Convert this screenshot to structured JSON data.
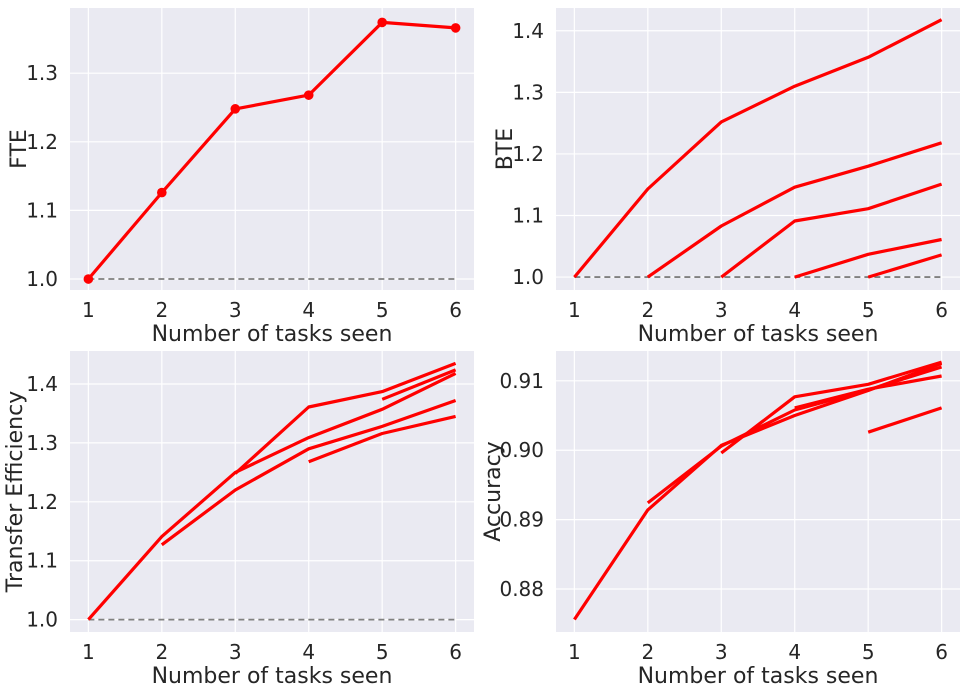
{
  "chart_data": [
    {
      "id": "fte",
      "type": "line",
      "title": "",
      "xlabel": "Number of tasks seen",
      "ylabel": "FTE",
      "xlim": [
        0.75,
        6.25
      ],
      "ylim": [
        0.984,
        1.395
      ],
      "xticks": [
        1,
        2,
        3,
        4,
        5,
        6
      ],
      "yticks": [
        1.0,
        1.1,
        1.2,
        1.3
      ],
      "ytick_labels": [
        "1.0",
        "1.1",
        "1.2",
        "1.3"
      ],
      "grid": true,
      "baseline": 1.0,
      "series": [
        {
          "x": [
            1,
            2,
            3,
            4,
            5,
            6
          ],
          "y": [
            1.0,
            1.126,
            1.248,
            1.268,
            1.374,
            1.366
          ],
          "markers": true
        }
      ]
    },
    {
      "id": "bte",
      "type": "line",
      "title": "",
      "xlabel": "Number of tasks seen",
      "ylabel": "BTE",
      "xlim": [
        0.75,
        6.25
      ],
      "ylim": [
        0.979,
        1.437
      ],
      "xticks": [
        1,
        2,
        3,
        4,
        5,
        6
      ],
      "yticks": [
        1.0,
        1.1,
        1.2,
        1.3,
        1.4
      ],
      "ytick_labels": [
        "1.0",
        "1.1",
        "1.2",
        "1.3",
        "1.4"
      ],
      "grid": true,
      "baseline": 1.0,
      "series": [
        {
          "x": [
            1,
            2,
            3,
            4,
            5,
            6
          ],
          "y": [
            1.0,
            1.143,
            1.252,
            1.31,
            1.357,
            1.418
          ]
        },
        {
          "x": [
            2,
            3,
            4,
            5,
            6
          ],
          "y": [
            1.0,
            1.083,
            1.146,
            1.18,
            1.218
          ]
        },
        {
          "x": [
            3,
            4,
            5,
            6
          ],
          "y": [
            1.0,
            1.091,
            1.111,
            1.151
          ]
        },
        {
          "x": [
            4,
            5,
            6
          ],
          "y": [
            1.0,
            1.037,
            1.061
          ]
        },
        {
          "x": [
            5,
            6
          ],
          "y": [
            1.0,
            1.036
          ]
        }
      ]
    },
    {
      "id": "transfer",
      "type": "line",
      "title": "",
      "xlabel": "Number of tasks seen",
      "ylabel": "Transfer Efficiency",
      "xlim": [
        0.75,
        6.25
      ],
      "ylim": [
        0.979,
        1.456
      ],
      "xticks": [
        1,
        2,
        3,
        4,
        5,
        6
      ],
      "yticks": [
        1.0,
        1.1,
        1.2,
        1.3,
        1.4
      ],
      "ytick_labels": [
        "1.0",
        "1.1",
        "1.2",
        "1.3",
        "1.4"
      ],
      "grid": true,
      "baseline": 1.0,
      "series": [
        {
          "x": [
            1,
            2,
            3,
            4,
            5,
            6
          ],
          "y": [
            1.0,
            1.141,
            1.25,
            1.309,
            1.357,
            1.418
          ]
        },
        {
          "x": [
            2,
            3,
            4,
            5,
            6
          ],
          "y": [
            1.127,
            1.22,
            1.29,
            1.328,
            1.372
          ]
        },
        {
          "x": [
            3,
            4,
            5,
            6
          ],
          "y": [
            1.248,
            1.361,
            1.387,
            1.435
          ]
        },
        {
          "x": [
            4,
            5,
            6
          ],
          "y": [
            1.268,
            1.316,
            1.345
          ]
        },
        {
          "x": [
            5,
            6
          ],
          "y": [
            1.374,
            1.424
          ]
        }
      ]
    },
    {
      "id": "accuracy",
      "type": "line",
      "title": "",
      "xlabel": "Number of tasks seen",
      "ylabel": "Accuracy",
      "xlim": [
        0.75,
        6.25
      ],
      "ylim": [
        0.8738,
        0.9143
      ],
      "xticks": [
        1,
        2,
        3,
        4,
        5,
        6
      ],
      "yticks": [
        0.88,
        0.89,
        0.9,
        0.91
      ],
      "ytick_labels": [
        "0.88",
        "0.89",
        "0.90",
        "0.91"
      ],
      "grid": true,
      "baseline": null,
      "series": [
        {
          "x": [
            1,
            2,
            3,
            4,
            5,
            6
          ],
          "y": [
            0.8756,
            0.8914,
            0.9007,
            0.905,
            0.9086,
            0.9125
          ]
        },
        {
          "x": [
            2,
            3,
            4,
            5,
            6
          ],
          "y": [
            0.8924,
            0.9006,
            0.9058,
            0.9087,
            0.912
          ]
        },
        {
          "x": [
            3,
            4,
            5,
            6
          ],
          "y": [
            0.8996,
            0.9077,
            0.9095,
            0.9127
          ]
        },
        {
          "x": [
            4,
            5,
            6
          ],
          "y": [
            0.9061,
            0.9088,
            0.9107
          ]
        },
        {
          "x": [
            5,
            6
          ],
          "y": [
            0.9026,
            0.9061
          ]
        }
      ]
    }
  ],
  "colors": {
    "series": "#ff0000",
    "baseline": "#808080",
    "plot_background": "#eaeaf2",
    "grid": "#ffffff",
    "text": "#262626"
  }
}
